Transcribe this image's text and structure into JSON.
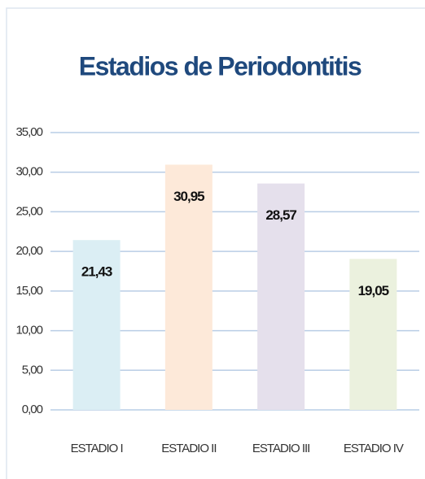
{
  "chart_data": {
    "type": "bar",
    "title": "Estadios de Periodontitis",
    "categories": [
      "ESTADIO I",
      "ESTADIO II",
      "ESTADIO III",
      "ESTADIO IV"
    ],
    "values": [
      21.43,
      30.95,
      28.57,
      19.05
    ],
    "value_labels": [
      "21,43",
      "30,95",
      "28,57",
      "19,05"
    ],
    "colors": [
      "#dbeef4",
      "#fde9d9",
      "#e5e0ec",
      "#ebf1de"
    ],
    "ylim": [
      0,
      35
    ],
    "yticks": [
      {
        "value": 0,
        "label": "0,00"
      },
      {
        "value": 5,
        "label": "5,00"
      },
      {
        "value": 10,
        "label": "10,00"
      },
      {
        "value": 15,
        "label": "15,00"
      },
      {
        "value": 20,
        "label": "20,00"
      },
      {
        "value": 25,
        "label": "25,00"
      },
      {
        "value": 30,
        "label": "30,00"
      },
      {
        "value": 35,
        "label": "35,00"
      }
    ],
    "grid": true
  }
}
